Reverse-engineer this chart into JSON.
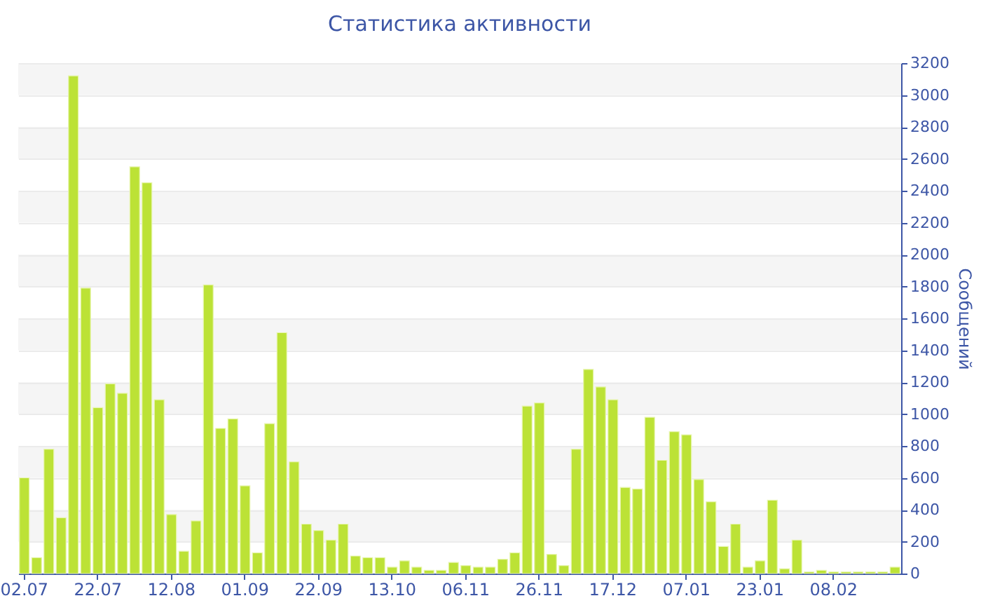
{
  "chart_data": {
    "type": "bar",
    "title": "Статистика активности",
    "ylabel": "Сообщений",
    "categories": [
      "02.07",
      null,
      null,
      null,
      null,
      null,
      "22.07",
      null,
      null,
      null,
      null,
      null,
      "12.08",
      null,
      null,
      null,
      null,
      null,
      "01.09",
      null,
      null,
      null,
      null,
      null,
      "22.09",
      null,
      null,
      null,
      null,
      null,
      "13.10",
      null,
      null,
      null,
      null,
      null,
      "06.11",
      null,
      null,
      null,
      null,
      null,
      "26.11",
      null,
      null,
      null,
      null,
      null,
      "17.12",
      null,
      null,
      null,
      null,
      null,
      "07.01",
      null,
      null,
      null,
      null,
      null,
      "23.01",
      null,
      null,
      null,
      null,
      null,
      "08.02",
      null,
      null,
      null,
      null,
      null
    ],
    "values": [
      600,
      100,
      780,
      350,
      3120,
      1790,
      1040,
      1190,
      1130,
      2550,
      2450,
      1090,
      370,
      140,
      330,
      1810,
      910,
      970,
      550,
      130,
      940,
      1510,
      700,
      310,
      270,
      210,
      310,
      110,
      100,
      100,
      40,
      80,
      40,
      20,
      20,
      70,
      50,
      40,
      40,
      90,
      130,
      1050,
      1070,
      120,
      50,
      780,
      1280,
      1170,
      1090,
      540,
      530,
      980,
      710,
      890,
      870,
      590,
      450,
      170,
      310,
      40,
      80,
      460,
      30,
      210,
      10,
      20,
      10,
      10,
      10,
      10,
      10,
      40
    ],
    "color": "#bce236",
    "ylim": [
      0,
      3200
    ],
    "yticks": [
      0,
      200,
      400,
      600,
      800,
      1000,
      1200,
      1400,
      1600,
      1800,
      2000,
      2200,
      2400,
      2600,
      2800,
      3000,
      3200
    ],
    "grid": "y"
  }
}
